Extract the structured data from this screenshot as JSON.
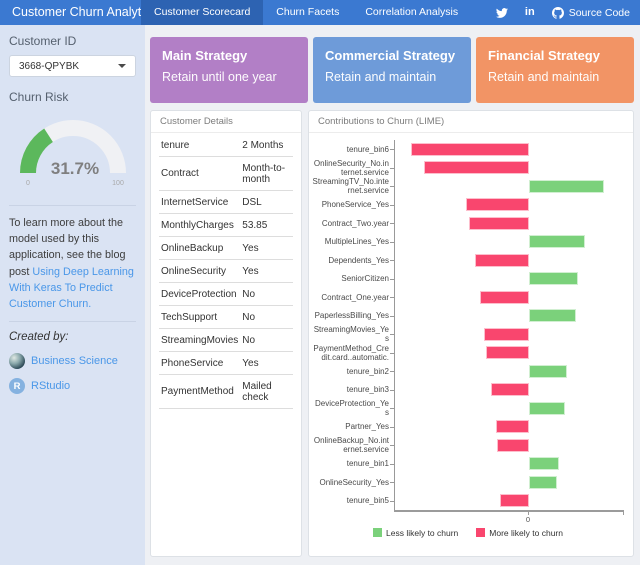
{
  "navbar": {
    "brand": "Customer Churn Analytics",
    "tabs": [
      {
        "label": "Customer Scorecard",
        "active": true
      },
      {
        "label": "Churn Facets",
        "active": false
      },
      {
        "label": "Correlation Analysis",
        "active": false
      }
    ],
    "source_code_label": "Source Code"
  },
  "sidebar": {
    "customer_id_label": "Customer ID",
    "customer_id_value": "3668-QPYBK",
    "churn_risk_label": "Churn Risk",
    "gauge": {
      "value": 31.7,
      "display": "31.7%",
      "min": "0",
      "max": "100",
      "color": "#5cb85c"
    },
    "about_text_prefix": "To learn more about the model used by this application, see the blog post ",
    "about_link": "Using Deep Learning With Keras To Predict Customer Churn.",
    "created_by_label": "Created by:",
    "credits": [
      {
        "label": "Business Science"
      },
      {
        "label": "RStudio"
      }
    ]
  },
  "strategies": [
    {
      "title": "Main Strategy",
      "subtitle": "Retain until one year",
      "color": "#b27fc6"
    },
    {
      "title": "Commercial Strategy",
      "subtitle": "Retain and maintain",
      "color": "#6e9bd9"
    },
    {
      "title": "Financial Strategy",
      "subtitle": "Retain and maintain",
      "color": "#f29465"
    }
  ],
  "details_panel": {
    "title": "Customer Details",
    "rows": [
      {
        "key": "tenure",
        "value": "2 Months"
      },
      {
        "key": "Contract",
        "value": "Month-to-month"
      },
      {
        "key": "InternetService",
        "value": "DSL"
      },
      {
        "key": "MonthlyCharges",
        "value": "53.85"
      },
      {
        "key": "OnlineBackup",
        "value": "Yes"
      },
      {
        "key": "OnlineSecurity",
        "value": "Yes"
      },
      {
        "key": "DeviceProtection",
        "value": "No"
      },
      {
        "key": "TechSupport",
        "value": "No"
      },
      {
        "key": "StreamingMovies",
        "value": "No"
      },
      {
        "key": "PhoneService",
        "value": "Yes"
      },
      {
        "key": "PaymentMethod",
        "value": "Mailed check"
      }
    ]
  },
  "chart_panel": {
    "title": "Contributions to Churn (LIME)"
  },
  "chart_data": {
    "type": "bar",
    "orientation": "horizontal",
    "title": "Contributions to Churn (LIME)",
    "xlabel": "",
    "ylabel": "",
    "xlim": [
      -0.134,
      0.095
    ],
    "x_tick_labels": [
      "0"
    ],
    "grid": false,
    "legend_position": "bottom",
    "legend": [
      {
        "label": "Less likely to churn",
        "color": "#7bd17b"
      },
      {
        "label": "More likely to churn",
        "color": "#f9466e"
      }
    ],
    "features": [
      {
        "label": "tenure_bin6",
        "weight": -0.118
      },
      {
        "label": "OnlineSecurity_No.internet.service",
        "weight": -0.105
      },
      {
        "label": "StreamingTV_No.internet.service",
        "weight": 0.075
      },
      {
        "label": "PhoneService_Yes",
        "weight": -0.063
      },
      {
        "label": "Contract_Two.year",
        "weight": -0.06
      },
      {
        "label": "MultipleLines_Yes",
        "weight": 0.056
      },
      {
        "label": "Dependents_Yes",
        "weight": -0.054
      },
      {
        "label": "SeniorCitizen",
        "weight": 0.049
      },
      {
        "label": "Contract_One.year",
        "weight": -0.049
      },
      {
        "label": "PaperlessBilling_Yes",
        "weight": 0.047
      },
      {
        "label": "StreamingMovies_Yes",
        "weight": -0.045
      },
      {
        "label": "PaymentMethod_Credit.card..automatic.",
        "weight": -0.043
      },
      {
        "label": "tenure_bin2",
        "weight": 0.038
      },
      {
        "label": "tenure_bin3",
        "weight": -0.038
      },
      {
        "label": "DeviceProtection_Yes",
        "weight": 0.036
      },
      {
        "label": "Partner_Yes",
        "weight": -0.033
      },
      {
        "label": "OnlineBackup_No.internet.service",
        "weight": -0.032
      },
      {
        "label": "tenure_bin1",
        "weight": 0.03
      },
      {
        "label": "OnlineSecurity_Yes",
        "weight": 0.028
      },
      {
        "label": "tenure_bin5",
        "weight": -0.029
      }
    ]
  }
}
